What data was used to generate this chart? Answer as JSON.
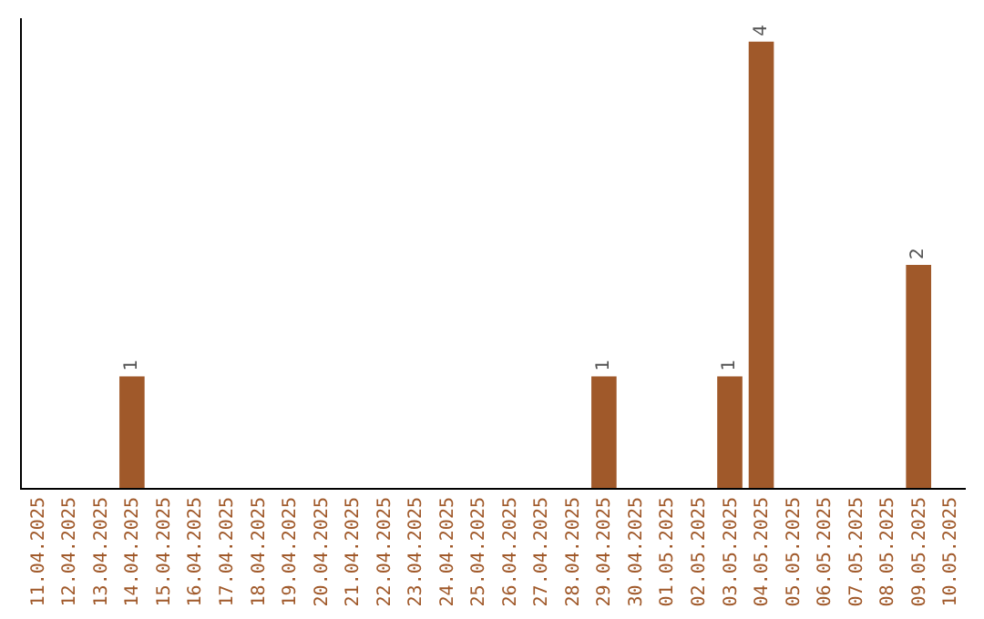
{
  "chart_data": {
    "type": "bar",
    "categories": [
      "11.04.2025",
      "12.04.2025",
      "13.04.2025",
      "14.04.2025",
      "15.04.2025",
      "16.04.2025",
      "17.04.2025",
      "18.04.2025",
      "19.04.2025",
      "20.04.2025",
      "21.04.2025",
      "22.04.2025",
      "23.04.2025",
      "24.04.2025",
      "25.04.2025",
      "26.04.2025",
      "27.04.2025",
      "28.04.2025",
      "29.04.2025",
      "30.04.2025",
      "01.05.2025",
      "02.05.2025",
      "03.05.2025",
      "04.05.2025",
      "05.05.2025",
      "06.05.2025",
      "07.05.2025",
      "08.05.2025",
      "09.05.2025",
      "10.05.2025"
    ],
    "values": [
      0,
      0,
      0,
      1,
      0,
      0,
      0,
      0,
      0,
      0,
      0,
      0,
      0,
      0,
      0,
      0,
      0,
      0,
      1,
      0,
      0,
      0,
      1,
      4,
      0,
      0,
      0,
      0,
      2,
      0
    ],
    "value_labels": [
      null,
      null,
      null,
      "1",
      null,
      null,
      null,
      null,
      null,
      null,
      null,
      null,
      null,
      null,
      null,
      null,
      null,
      null,
      "1",
      null,
      null,
      null,
      "1",
      "4",
      null,
      null,
      null,
      null,
      "2",
      null
    ],
    "color": "#a0592a"
  }
}
